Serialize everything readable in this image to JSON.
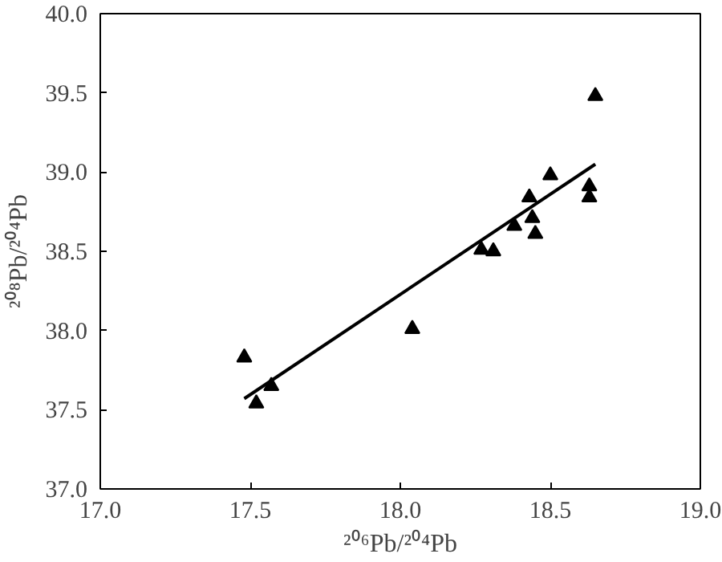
{
  "chart_data": {
    "type": "scatter",
    "xlabel": "²⁰⁶Pb/²⁰⁴Pb",
    "ylabel": "²⁰⁸Pb/²⁰⁴Pb",
    "grid": false,
    "xlim": [
      17.0,
      19.0
    ],
    "ylim": [
      37.0,
      40.0
    ],
    "xticks": [
      {
        "value": 17.0,
        "label": "17.0"
      },
      {
        "value": 17.5,
        "label": "17.5"
      },
      {
        "value": 18.0,
        "label": "18.0"
      },
      {
        "value": 18.5,
        "label": "18.5"
      },
      {
        "value": 19.0,
        "label": "19.0"
      }
    ],
    "yticks": [
      {
        "value": 37.0,
        "label": "37.0"
      },
      {
        "value": 37.5,
        "label": "37.5"
      },
      {
        "value": 38.0,
        "label": "38.0"
      },
      {
        "value": 38.5,
        "label": "38.5"
      },
      {
        "value": 39.0,
        "label": "39.0"
      },
      {
        "value": 39.5,
        "label": "39.5"
      },
      {
        "value": 40.0,
        "label": "40.0"
      }
    ],
    "series": [
      {
        "marker": "triangle",
        "color": "#000000",
        "x": [
          17.48,
          17.52,
          17.57,
          18.04,
          18.27,
          18.31,
          18.38,
          18.43,
          18.44,
          18.45,
          18.5,
          18.63,
          18.63,
          18.65
        ],
        "values": [
          37.83,
          37.54,
          37.65,
          38.01,
          38.51,
          38.5,
          38.66,
          38.84,
          38.71,
          38.61,
          38.98,
          38.91,
          38.84,
          39.48
        ]
      },
      {
        "type": "line",
        "color": "#000000",
        "x": [
          17.48,
          18.65
        ],
        "values": [
          37.57,
          39.05
        ]
      }
    ]
  }
}
